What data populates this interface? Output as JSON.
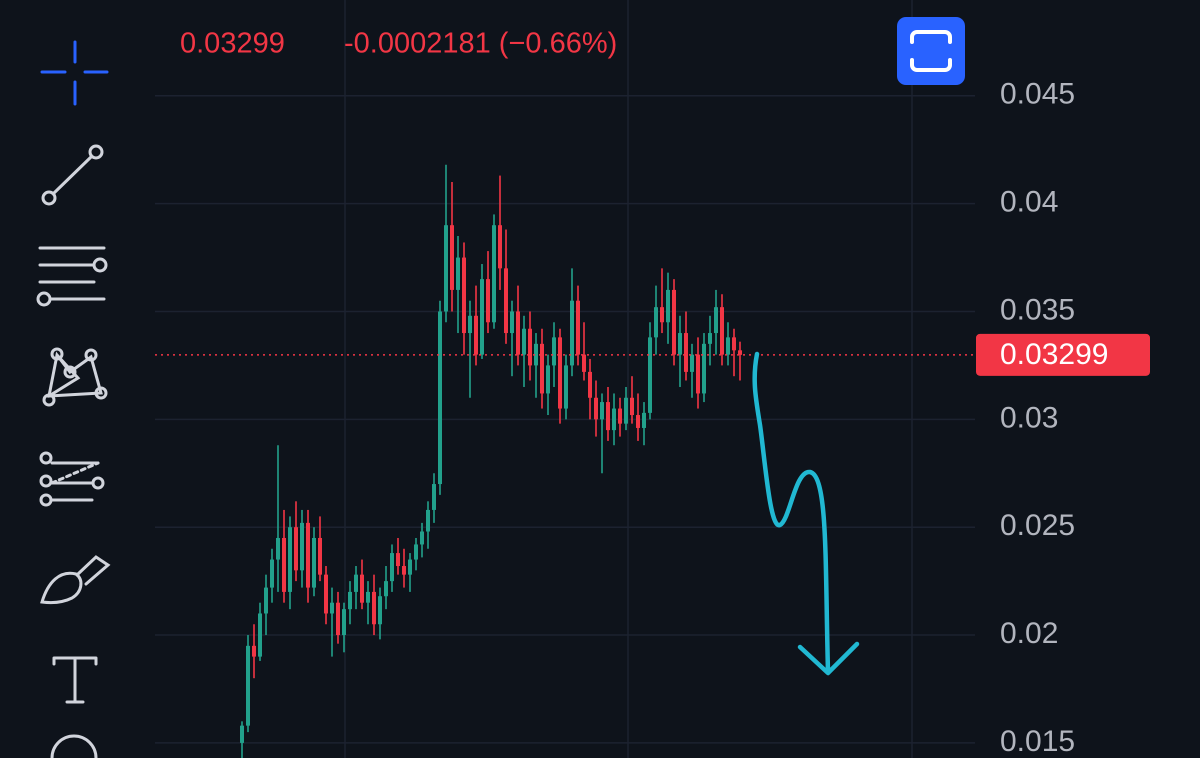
{
  "chart_data": {
    "type": "candlestick",
    "header_price_change": "-0.0002181 (−0.66%)",
    "up_color": "#22a18c",
    "down_color": "#f23645",
    "ylim": [
      0.0143,
      0.04944
    ],
    "yticks": [
      0.045,
      0.04,
      0.035,
      0.03,
      0.025,
      0.02,
      0.015
    ],
    "open": [
      0.015,
      0.0158,
      0.0195,
      0.019,
      0.021,
      0.0222,
      0.0235,
      0.0245,
      0.022,
      0.025,
      0.023,
      0.0252,
      0.0222,
      0.0245,
      0.0228,
      0.021,
      0.0215,
      0.02,
      0.0212,
      0.022,
      0.0228,
      0.0215,
      0.022,
      0.0205,
      0.0218,
      0.0225,
      0.0238,
      0.0232,
      0.0228,
      0.0235,
      0.0242,
      0.0248,
      0.0258,
      0.027,
      0.035,
      0.039,
      0.036,
      0.0375,
      0.034,
      0.0348,
      0.033,
      0.0365,
      0.0345,
      0.039,
      0.037,
      0.034,
      0.035,
      0.033,
      0.0342,
      0.0325,
      0.0335,
      0.0312,
      0.0325,
      0.0338,
      0.0305,
      0.0325,
      0.0355,
      0.033,
      0.0322,
      0.031,
      0.03,
      0.0308,
      0.0295,
      0.0305,
      0.0298,
      0.031,
      0.0302,
      0.0296,
      0.0303,
      0.0338,
      0.0352,
      0.0345,
      0.036,
      0.033,
      0.034,
      0.0322,
      0.033,
      0.0312,
      0.0335,
      0.034,
      0.0352,
      0.033,
      0.0338,
      0.0332
    ],
    "high": [
      0.016,
      0.02,
      0.0205,
      0.0215,
      0.0228,
      0.024,
      0.0288,
      0.0258,
      0.0255,
      0.0262,
      0.0258,
      0.0258,
      0.025,
      0.0255,
      0.0232,
      0.0222,
      0.022,
      0.0215,
      0.0225,
      0.0232,
      0.0235,
      0.0225,
      0.0228,
      0.0222,
      0.0232,
      0.0242,
      0.0245,
      0.024,
      0.0238,
      0.0245,
      0.0252,
      0.0262,
      0.0275,
      0.0355,
      0.0418,
      0.041,
      0.0385,
      0.0382,
      0.0355,
      0.0362,
      0.0372,
      0.0378,
      0.0395,
      0.0413,
      0.0388,
      0.0355,
      0.0362,
      0.0348,
      0.035,
      0.034,
      0.0342,
      0.033,
      0.0345,
      0.0342,
      0.033,
      0.037,
      0.0362,
      0.0345,
      0.0328,
      0.0318,
      0.0312,
      0.0315,
      0.0312,
      0.031,
      0.0315,
      0.032,
      0.0312,
      0.0308,
      0.0345,
      0.0362,
      0.037,
      0.0368,
      0.0365,
      0.0348,
      0.035,
      0.0335,
      0.0338,
      0.034,
      0.0348,
      0.036,
      0.0358,
      0.0345,
      0.0342,
      0.0336
    ],
    "low": [
      0.014,
      0.0155,
      0.018,
      0.0188,
      0.02,
      0.0215,
      0.022,
      0.0215,
      0.0212,
      0.0225,
      0.0222,
      0.0215,
      0.0218,
      0.0225,
      0.0205,
      0.019,
      0.0196,
      0.0192,
      0.0205,
      0.0212,
      0.0212,
      0.0205,
      0.02,
      0.0198,
      0.0212,
      0.022,
      0.0228,
      0.0222,
      0.022,
      0.023,
      0.0236,
      0.024,
      0.0252,
      0.0265,
      0.0345,
      0.035,
      0.034,
      0.033,
      0.031,
      0.0325,
      0.0328,
      0.034,
      0.0342,
      0.036,
      0.0335,
      0.032,
      0.0325,
      0.0315,
      0.0318,
      0.031,
      0.0305,
      0.0302,
      0.0315,
      0.0298,
      0.03,
      0.032,
      0.0325,
      0.0318,
      0.03,
      0.0292,
      0.0275,
      0.029,
      0.0288,
      0.0292,
      0.0295,
      0.0298,
      0.029,
      0.0288,
      0.03,
      0.033,
      0.034,
      0.0335,
      0.0325,
      0.0315,
      0.0318,
      0.031,
      0.0305,
      0.0308,
      0.0325,
      0.033,
      0.0325,
      0.0325,
      0.032,
      0.0318
    ],
    "close": [
      0.0158,
      0.0195,
      0.019,
      0.021,
      0.0222,
      0.0235,
      0.0245,
      0.022,
      0.025,
      0.023,
      0.0252,
      0.0222,
      0.0245,
      0.0228,
      0.021,
      0.0215,
      0.02,
      0.0212,
      0.022,
      0.0228,
      0.0215,
      0.022,
      0.0205,
      0.0218,
      0.0225,
      0.0238,
      0.0232,
      0.0228,
      0.0235,
      0.0242,
      0.0248,
      0.0258,
      0.027,
      0.035,
      0.039,
      0.036,
      0.0375,
      0.034,
      0.0348,
      0.033,
      0.0365,
      0.0345,
      0.039,
      0.037,
      0.034,
      0.035,
      0.033,
      0.0342,
      0.0325,
      0.0335,
      0.0312,
      0.0325,
      0.0338,
      0.0305,
      0.0325,
      0.0355,
      0.033,
      0.0322,
      0.031,
      0.03,
      0.0308,
      0.0295,
      0.0305,
      0.0298,
      0.031,
      0.0302,
      0.0296,
      0.0303,
      0.0338,
      0.0352,
      0.0345,
      0.036,
      0.033,
      0.034,
      0.0322,
      0.033,
      0.0312,
      0.0335,
      0.034,
      0.0352,
      0.033,
      0.0338,
      0.0332,
      0.03299
    ]
  }
}
